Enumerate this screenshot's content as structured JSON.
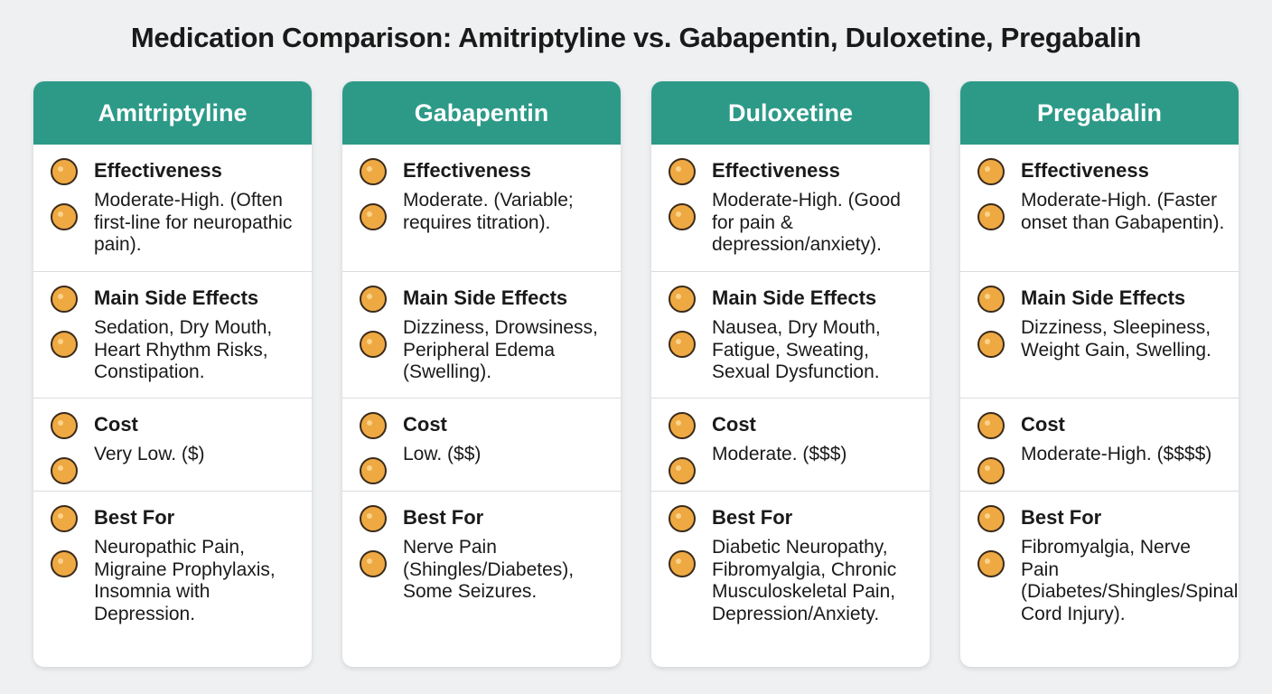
{
  "title": "Medication Comparison: Amitriptyline vs. Gabapentin, Duloxetine, Pregabalin",
  "cards": [
    {
      "name": "Amitriptyline",
      "sections": [
        {
          "label": "Effectiveness",
          "text": "Moderate-High. (Often first-line for neuropathic pain)."
        },
        {
          "label": "Main Side Effects",
          "text": "Sedation, Dry Mouth, Heart Rhythm Risks, Constipation."
        },
        {
          "label": "Cost",
          "text": "Very Low. ($)"
        },
        {
          "label": "Best For",
          "text": "Neuropathic Pain, Migraine Prophylaxis, Insomnia with Depression."
        }
      ]
    },
    {
      "name": "Gabapentin",
      "sections": [
        {
          "label": "Effectiveness",
          "text": "Moderate. (Variable; requires titration)."
        },
        {
          "label": "Main Side Effects",
          "text": "Dizziness, Drowsiness, Peripheral Edema (Swelling)."
        },
        {
          "label": "Cost",
          "text": "Low. ($$)"
        },
        {
          "label": "Best For",
          "text": "Nerve Pain (Shingles/Diabetes), Some Seizures."
        }
      ]
    },
    {
      "name": "Duloxetine",
      "sections": [
        {
          "label": "Effectiveness",
          "text": "Moderate-High. (Good for pain & depression/anxiety)."
        },
        {
          "label": "Main Side Effects",
          "text": "Nausea, Dry Mouth, Fatigue, Sweating, Sexual Dysfunction."
        },
        {
          "label": "Cost",
          "text": "Moderate. ($$$)"
        },
        {
          "label": "Best For",
          "text": "Diabetic Neuropathy, Fibromyalgia, Chronic Musculoskeletal Pain, Depression/Anxiety."
        }
      ]
    },
    {
      "name": "Pregabalin",
      "sections": [
        {
          "label": "Effectiveness",
          "text": "Moderate-High. (Faster onset than Gabapentin)."
        },
        {
          "label": "Main Side Effects",
          "text": "Dizziness, Sleepiness, Weight Gain, Swelling."
        },
        {
          "label": "Cost",
          "text": "Moderate-High. ($$$$)"
        },
        {
          "label": "Best For",
          "text": "Fibromyalgia, Nerve Pain (Diabetes/Shingles/Spinal Cord Injury)."
        }
      ]
    }
  ]
}
